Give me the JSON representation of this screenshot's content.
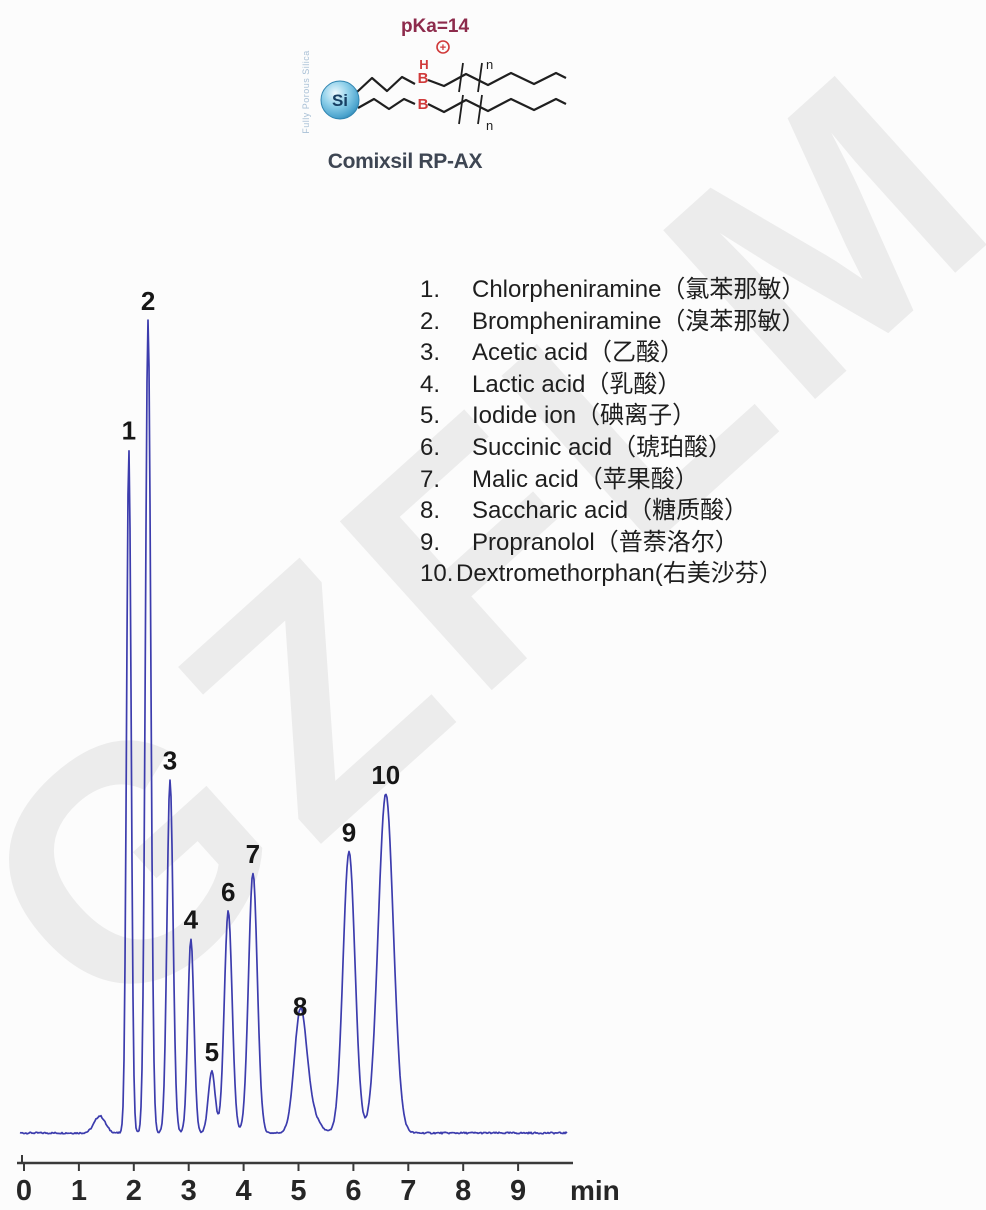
{
  "watermark": {
    "text": "GZFLM"
  },
  "structure": {
    "pka_label": "pKa=14",
    "charge_symbol": "+",
    "proton_label": "H",
    "amine_top_label": "B",
    "amine_bottom_label": "B",
    "repeat_label_top": "n",
    "repeat_label_bottom": "n",
    "sphere_label": "Si",
    "sphere_caption": "Fully Porous Silica",
    "column_name": "Comixsil RP-AX"
  },
  "legend": {
    "items": [
      {
        "num": "1.",
        "text": "Chlorpheniramine（氯苯那敏）"
      },
      {
        "num": "2.",
        "text": "Brompheniramine（溴苯那敏）"
      },
      {
        "num": "3.",
        "text": "Acetic acid（乙酸）"
      },
      {
        "num": "4.",
        "text": "Lactic acid（乳酸）"
      },
      {
        "num": "5.",
        "text": "Iodide ion（碘离子）"
      },
      {
        "num": "6.",
        "text": "Succinic acid（琥珀酸）"
      },
      {
        "num": "7.",
        "text": "Malic acid（苹果酸）"
      },
      {
        "num": "8.",
        "text": "Saccharic acid（糖质酸）"
      },
      {
        "num": "9.",
        "text": "Propranolol（普萘洛尔）"
      },
      {
        "num": "10.",
        "text": "Dextromethorphan(右美沙芬）"
      }
    ]
  },
  "chart_data": {
    "type": "line",
    "title": "",
    "x_axis": {
      "label": "min",
      "min": 0,
      "max": 9.9,
      "ticks": [
        0,
        1,
        2,
        3,
        4,
        5,
        6,
        7,
        8,
        9
      ]
    },
    "y_axis": {
      "visible": false
    },
    "legend_position": "upper-right",
    "grid": false,
    "trace_color": "#3c3cad",
    "peaks": [
      {
        "label": "1",
        "time_min": 1.91,
        "height_pct": 84.1,
        "sigma_min": 0.042
      },
      {
        "label": "2",
        "time_min": 2.26,
        "height_pct": 100.0,
        "sigma_min": 0.049
      },
      {
        "label": "3",
        "time_min": 2.66,
        "height_pct": 43.5,
        "sigma_min": 0.055
      },
      {
        "label": "4",
        "time_min": 3.04,
        "height_pct": 23.9,
        "sigma_min": 0.055
      },
      {
        "label": "5",
        "time_min": 3.42,
        "height_pct": 7.6,
        "sigma_min": 0.062
      },
      {
        "label": "6",
        "time_min": 3.72,
        "height_pct": 27.3,
        "sigma_min": 0.071
      },
      {
        "label": "7",
        "time_min": 4.17,
        "height_pct": 32.0,
        "sigma_min": 0.08
      },
      {
        "label": "8",
        "time_min": 5.03,
        "height_pct": 13.2,
        "sigma_min": 0.109
      },
      {
        "label": "9",
        "time_min": 5.92,
        "height_pct": 34.6,
        "sigma_min": 0.109
      },
      {
        "label": "10",
        "time_min": 6.59,
        "height_pct": 41.7,
        "sigma_min": 0.138
      }
    ],
    "artifacts": [
      {
        "label": "",
        "time_min": 1.38,
        "height_pct": 2.1,
        "sigma_min": 0.1
      },
      {
        "label": "",
        "time_min": 5.17,
        "height_pct": 3.2,
        "sigma_min": 0.155
      }
    ]
  },
  "colors": {
    "accent_red": "#d03a3a",
    "pka_text": "#8d2b4c",
    "trace": "#3c3cad",
    "column_label": "#3e4653",
    "silica_caption": "#a9c0d6",
    "axis": "#3a3a3a"
  }
}
